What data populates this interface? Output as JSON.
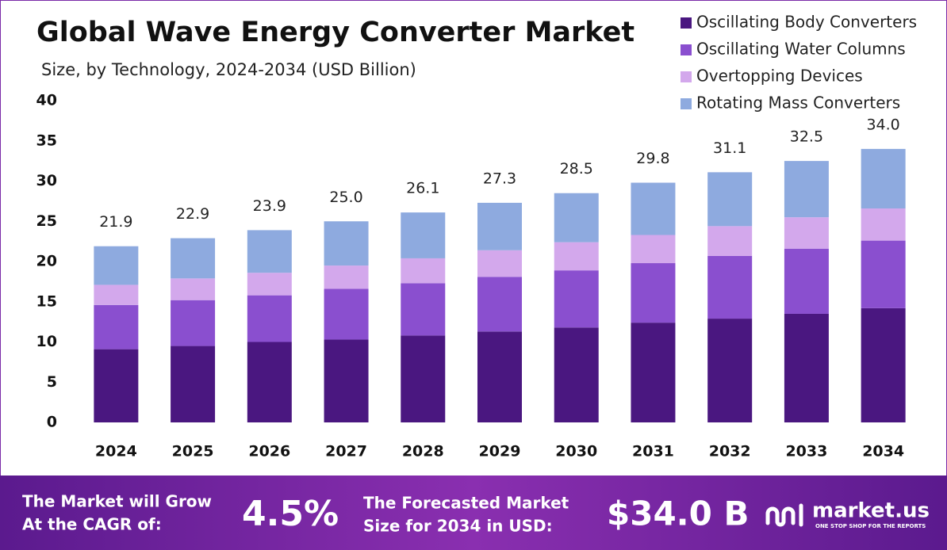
{
  "chart_data": {
    "type": "stacked-bar",
    "title": "Global Wave Energy Converter Market",
    "subtitle": "Size, by Technology, 2024-2034 (USD Billion)",
    "categories": [
      "2024",
      "2025",
      "2026",
      "2027",
      "2028",
      "2029",
      "2030",
      "2031",
      "2032",
      "2033",
      "2034"
    ],
    "series": [
      {
        "name": "Oscillating Body Converters",
        "color": "#4a1780",
        "values": [
          9.1,
          9.5,
          10.0,
          10.3,
          10.8,
          11.3,
          11.8,
          12.4,
          12.9,
          13.5,
          14.2
        ]
      },
      {
        "name": "Oscillating Water Columns",
        "color": "#8a4fcf",
        "values": [
          5.5,
          5.7,
          5.8,
          6.3,
          6.5,
          6.8,
          7.1,
          7.4,
          7.8,
          8.1,
          8.4
        ]
      },
      {
        "name": "Overtopping Devices",
        "color": "#d3a8ec",
        "values": [
          2.5,
          2.7,
          2.8,
          2.9,
          3.1,
          3.3,
          3.5,
          3.5,
          3.7,
          3.9,
          4.0
        ]
      },
      {
        "name": "Rotating Mass Converters",
        "color": "#8eaadf",
        "values": [
          4.8,
          5.0,
          5.3,
          5.5,
          5.7,
          5.9,
          6.1,
          6.5,
          6.7,
          7.0,
          7.4
        ]
      }
    ],
    "totals": {
      "values": [
        21.9,
        22.9,
        23.9,
        25.0,
        26.1,
        27.3,
        28.5,
        29.8,
        31.1,
        32.5,
        34.0
      ],
      "value_labels": [
        "21.9",
        "22.9",
        "23.9",
        "25.0",
        "26.1",
        "27.3",
        "28.5",
        "29.8",
        "31.1",
        "32.5",
        "34.0"
      ]
    },
    "ylim": [
      0,
      40
    ],
    "yticks": [
      0,
      5,
      10,
      15,
      20,
      25,
      30,
      35,
      40
    ],
    "grid": false
  },
  "footer": {
    "cagr_text_1": "The Market will Grow",
    "cagr_text_2": "At the CAGR of:",
    "cagr_value": "4.5%",
    "forecast_text_1": "The Forecasted Market",
    "forecast_text_2": "Size for 2034 in USD:",
    "forecast_value": "$34.0 B",
    "brand": "market.us",
    "tagline": "ONE STOP SHOP FOR THE REPORTS"
  }
}
